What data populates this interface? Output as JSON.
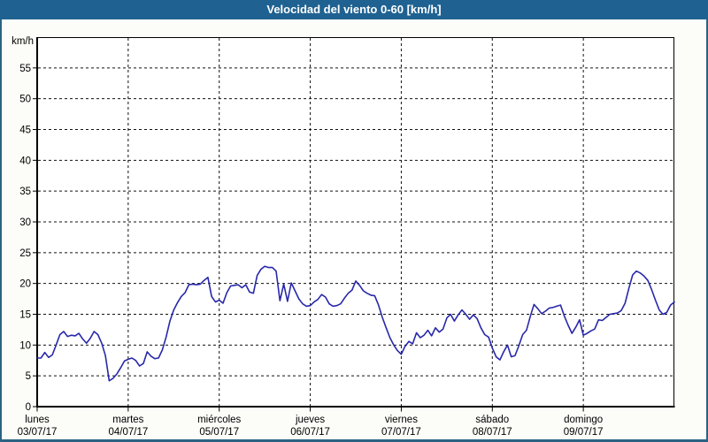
{
  "window": {
    "title": "Velocidad del viento 0-60 [km/h]",
    "titlebar_color": "#1f6292",
    "titlebar_text_color": "#ffffff",
    "border_color": "#2a6383",
    "background_color": "#fcfdf8"
  },
  "chart_data": {
    "type": "line",
    "title": "Velocidad del viento 0-60 [km/h]",
    "ylabel": "km/h",
    "ylim": [
      0,
      60
    ],
    "yticks": [
      0,
      5,
      10,
      15,
      20,
      25,
      30,
      35,
      40,
      45,
      50,
      55
    ],
    "grid": "dashed",
    "grid_color": "#111111",
    "axis_color": "#000000",
    "line_color": "#2828aa",
    "plot_bg": "#ffffff",
    "hours_per_day": 24,
    "total_hours": 168,
    "days": [
      {
        "name": "lunes",
        "date": "03/07/17"
      },
      {
        "name": "martes",
        "date": "04/07/17"
      },
      {
        "name": "miércoles",
        "date": "05/07/17"
      },
      {
        "name": "jueves",
        "date": "06/07/17"
      },
      {
        "name": "viernes",
        "date": "07/07/17"
      },
      {
        "name": "sábado",
        "date": "08/07/17"
      },
      {
        "name": "domingo",
        "date": "09/07/17"
      }
    ],
    "values": [
      7.9,
      7.9,
      8.8,
      8.0,
      8.4,
      10.0,
      11.7,
      12.2,
      11.4,
      11.6,
      11.5,
      11.9,
      11.0,
      10.3,
      11.1,
      12.2,
      11.7,
      10.3,
      8.3,
      4.2,
      4.6,
      5.3,
      6.3,
      7.4,
      7.7,
      7.9,
      7.5,
      6.6,
      7.0,
      8.9,
      8.2,
      7.8,
      7.9,
      9.2,
      11.3,
      13.9,
      15.7,
      16.9,
      17.9,
      18.5,
      19.8,
      19.9,
      19.8,
      19.9,
      20.5,
      21.0,
      17.9,
      17.0,
      17.3,
      16.8,
      18.5,
      19.6,
      19.7,
      19.8,
      19.3,
      19.8,
      18.6,
      18.4,
      21.3,
      22.3,
      22.8,
      22.6,
      22.6,
      22.0,
      17.2,
      19.9,
      17.1,
      20.1,
      18.8,
      17.5,
      16.7,
      16.3,
      16.4,
      17.0,
      17.4,
      18.2,
      17.8,
      16.7,
      16.3,
      16.4,
      16.7,
      17.6,
      18.4,
      18.9,
      20.4,
      19.7,
      18.8,
      18.4,
      18.1,
      18.0,
      16.5,
      14.5,
      12.8,
      11.2,
      10.0,
      9.1,
      8.5,
      9.8,
      10.6,
      10.2,
      12.0,
      11.2,
      11.6,
      12.4,
      11.5,
      12.8,
      12.1,
      12.6,
      14.4,
      15.0,
      13.9,
      14.9,
      15.7,
      15.0,
      14.2,
      14.9,
      14.3,
      12.8,
      11.7,
      11.3,
      9.5,
      8.1,
      7.6,
      8.9,
      10.0,
      8.1,
      8.3,
      9.9,
      11.7,
      12.4,
      14.6,
      16.6,
      15.9,
      15.1,
      15.5,
      16.0,
      16.1,
      16.3,
      16.5,
      14.7,
      13.2,
      11.9,
      12.9,
      14.1,
      11.6,
      11.9,
      12.3,
      12.6,
      14.1,
      14.0,
      14.5,
      15.0,
      15.1,
      15.2,
      15.6,
      16.8,
      19.2,
      21.4,
      22.0,
      21.7,
      21.2,
      20.5,
      19.0,
      17.3,
      15.7,
      15.0,
      15.3,
      16.5,
      17.0
    ]
  }
}
